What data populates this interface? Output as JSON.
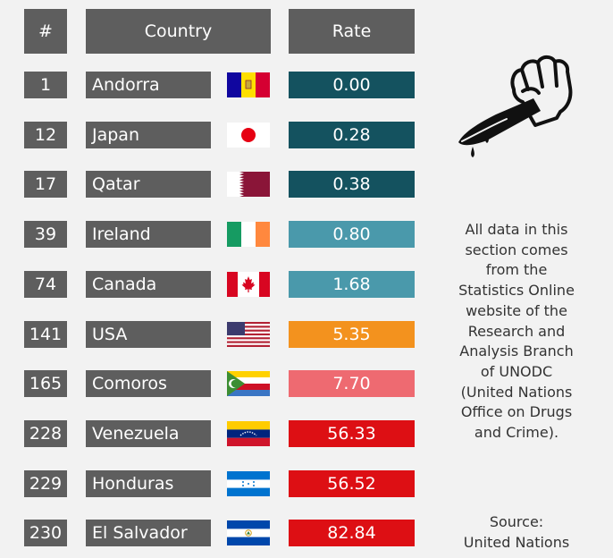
{
  "header": {
    "rank_label": "#",
    "country_label": "Country",
    "rate_label": "Rate"
  },
  "chart_data": {
    "type": "table",
    "columns": [
      "#",
      "Country",
      "Rate"
    ],
    "rows": [
      {
        "rank": "1",
        "country": "Andorra",
        "flag": "andorra-flag-icon",
        "rate": "0.00",
        "color": "#14525f"
      },
      {
        "rank": "12",
        "country": "Japan",
        "flag": "japan-flag-icon",
        "rate": "0.28",
        "color": "#14525f"
      },
      {
        "rank": "17",
        "country": "Qatar",
        "flag": "qatar-flag-icon",
        "rate": "0.38",
        "color": "#14525f"
      },
      {
        "rank": "39",
        "country": "Ireland",
        "flag": "ireland-flag-icon",
        "rate": "0.80",
        "color": "#4a99ab"
      },
      {
        "rank": "74",
        "country": "Canada",
        "flag": "canada-flag-icon",
        "rate": "1.68",
        "color": "#4a99ab"
      },
      {
        "rank": "141",
        "country": "USA",
        "flag": "usa-flag-icon",
        "rate": "5.35",
        "color": "#f3921e"
      },
      {
        "rank": "165",
        "country": "Comoros",
        "flag": "comoros-flag-icon",
        "rate": "7.70",
        "color": "#ee6a71"
      },
      {
        "rank": "228",
        "country": "Venezuela",
        "flag": "venezuela-flag-icon",
        "rate": "56.33",
        "color": "#dd0f14"
      },
      {
        "rank": "229",
        "country": "Honduras",
        "flag": "honduras-flag-icon",
        "rate": "56.52",
        "color": "#dd0f14"
      },
      {
        "rank": "230",
        "country": "El Salvador",
        "flag": "el-salvador-flag-icon",
        "rate": "82.84",
        "color": "#dd0f14"
      }
    ]
  },
  "side_note": "All data in this\nsection comes\nfrom the\nStatistics Online\nwebsite of the\nResearch and\nAnalysis Branch\nof UNODC\n(United Nations\nOffice on Drugs\nand Crime).",
  "source_note": "Source:\nUnited Nations",
  "icon": "bloody-knife-hand-icon"
}
